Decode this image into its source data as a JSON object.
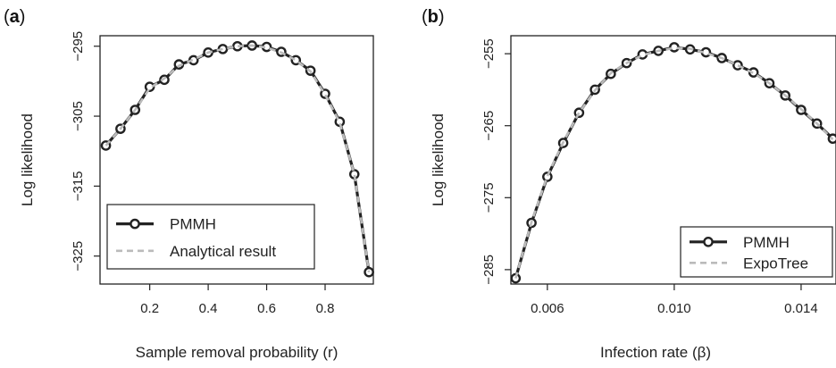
{
  "chart_data": [
    {
      "type": "line",
      "panel_letter": "a",
      "xlabel": "Sample removal probability (r)",
      "ylabel": "Log likelihood",
      "xlim": [
        0.03,
        0.965
      ],
      "ylim": [
        -329,
        -293.5
      ],
      "xticks": [
        0.2,
        0.4,
        0.6,
        0.8
      ],
      "xtick_labels": [
        "0.2",
        "0.4",
        "0.6",
        "0.8"
      ],
      "yticks": [
        -295,
        -305,
        -315,
        -325
      ],
      "ytick_labels": [
        "−295",
        "−305",
        "−315",
        "−325"
      ],
      "grid": false,
      "legend_position": "bottom-left",
      "x": [
        0.05,
        0.1,
        0.15,
        0.2,
        0.25,
        0.3,
        0.35,
        0.4,
        0.45,
        0.5,
        0.55,
        0.6,
        0.65,
        0.7,
        0.75,
        0.8,
        0.85,
        0.9,
        0.95
      ],
      "series": [
        {
          "name": "PMMH",
          "style": "line-with-circles",
          "color": "#222222",
          "values": [
            -309.2,
            -306.8,
            -304.1,
            -300.8,
            -299.8,
            -297.6,
            -297.0,
            -295.9,
            -295.4,
            -295.0,
            -294.9,
            -295.1,
            -295.8,
            -297.0,
            -298.5,
            -301.8,
            -305.8,
            -313.3,
            -327.3
          ]
        },
        {
          "name": "Analytical result",
          "style": "dashed",
          "color": "#bbbbbb",
          "values": [
            -309.2,
            -306.8,
            -304.1,
            -301.0,
            -299.6,
            -297.8,
            -296.9,
            -295.9,
            -295.4,
            -295.0,
            -294.9,
            -295.2,
            -295.9,
            -297.0,
            -298.6,
            -301.9,
            -305.9,
            -313.3,
            -327.3
          ]
        }
      ]
    },
    {
      "type": "line",
      "panel_letter": "b",
      "xlabel": "Infection rate (β)",
      "ylabel": "Log likelihood",
      "xlim": [
        0.00485,
        0.0151
      ],
      "ylim": [
        -287,
        -252.5
      ],
      "xticks": [
        0.006,
        0.01,
        0.014
      ],
      "xtick_labels": [
        "0.006",
        "0.010",
        "0.014"
      ],
      "yticks": [
        -255,
        -265,
        -275,
        -285
      ],
      "ytick_labels": [
        "−255",
        "−265",
        "−275",
        "−285"
      ],
      "grid": false,
      "legend_position": "bottom-right",
      "x": [
        0.005,
        0.0055,
        0.006,
        0.0065,
        0.007,
        0.0075,
        0.008,
        0.0085,
        0.009,
        0.0095,
        0.01,
        0.0105,
        0.011,
        0.0115,
        0.012,
        0.0125,
        0.013,
        0.0135,
        0.014,
        0.0145,
        0.015
      ],
      "series": [
        {
          "name": "PMMH",
          "style": "line-with-circles",
          "color": "#222222",
          "values": [
            -286.2,
            -278.5,
            -272.1,
            -267.4,
            -263.2,
            -260.0,
            -257.8,
            -256.3,
            -255.1,
            -254.6,
            -254.1,
            -254.4,
            -254.8,
            -255.6,
            -256.6,
            -257.6,
            -259.1,
            -260.8,
            -262.8,
            -264.7,
            -266.8
          ]
        },
        {
          "name": "ExpoTree",
          "style": "dashed",
          "color": "#bbbbbb",
          "values": [
            -286.2,
            -278.4,
            -272.0,
            -267.3,
            -263.2,
            -260.1,
            -257.7,
            -256.3,
            -255.2,
            -254.6,
            -254.2,
            -254.3,
            -254.9,
            -255.6,
            -256.6,
            -257.7,
            -259.1,
            -260.8,
            -262.7,
            -264.7,
            -266.9
          ]
        }
      ]
    }
  ]
}
